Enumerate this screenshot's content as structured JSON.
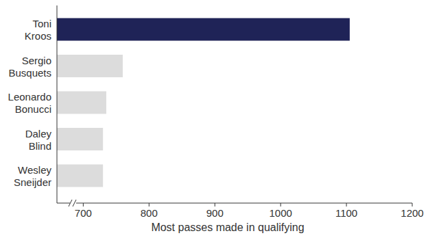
{
  "chart_data": {
    "type": "bar",
    "orientation": "horizontal",
    "categories": [
      "Toni Kroos",
      "Sergio Busquets",
      "Leonardo Bonucci",
      "Daley Blind",
      "Wesley Sneijder"
    ],
    "values": [
      1105,
      760,
      735,
      730,
      730
    ],
    "colors": [
      "#1f2357",
      "#dcdcdc",
      "#dcdcdc",
      "#dcdcdc",
      "#dcdcdc"
    ],
    "x_label": "Most passes made in qualifying",
    "xlim": [
      660,
      1200
    ],
    "xticks": [
      700,
      800,
      900,
      1000,
      1100,
      1200
    ],
    "grid": false
  }
}
